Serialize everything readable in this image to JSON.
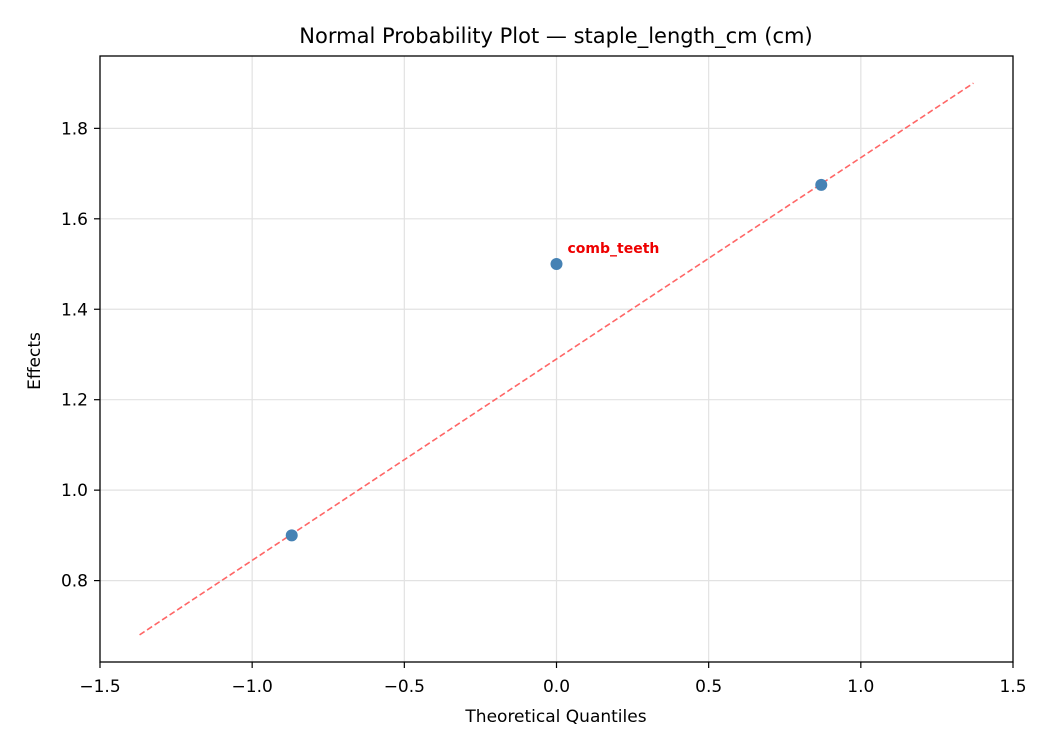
{
  "chart_data": {
    "type": "scatter",
    "title": "Normal Probability Plot — staple_length_cm (cm)",
    "xlabel": "Theoretical Quantiles",
    "ylabel": "Effects",
    "xlim": [
      -1.5,
      1.5
    ],
    "ylim": [
      0.62,
      1.96
    ],
    "x_ticks": [
      -1.5,
      -1.0,
      -0.5,
      0.0,
      0.5,
      1.0,
      1.5
    ],
    "x_tick_labels": [
      "−1.5",
      "−1.0",
      "−0.5",
      "0.0",
      "0.5",
      "1.0",
      "1.5"
    ],
    "y_ticks": [
      0.8,
      1.0,
      1.2,
      1.4,
      1.6,
      1.8
    ],
    "y_tick_labels": [
      "0.8",
      "1.0",
      "1.2",
      "1.4",
      "1.6",
      "1.8"
    ],
    "grid": true,
    "series": [
      {
        "kind": "points",
        "x": [
          -0.87,
          0.0,
          0.87
        ],
        "y": [
          0.9,
          1.5,
          1.675
        ],
        "color": "#4682b4"
      },
      {
        "kind": "reference-line",
        "x": [
          -1.37,
          1.37
        ],
        "y": [
          0.68,
          1.9
        ],
        "color": "#ff6666",
        "style": "dashed"
      }
    ],
    "annotations": [
      {
        "text": "comb_teeth",
        "x": 0.0,
        "y": 1.5,
        "color": "#ee0000"
      }
    ]
  }
}
